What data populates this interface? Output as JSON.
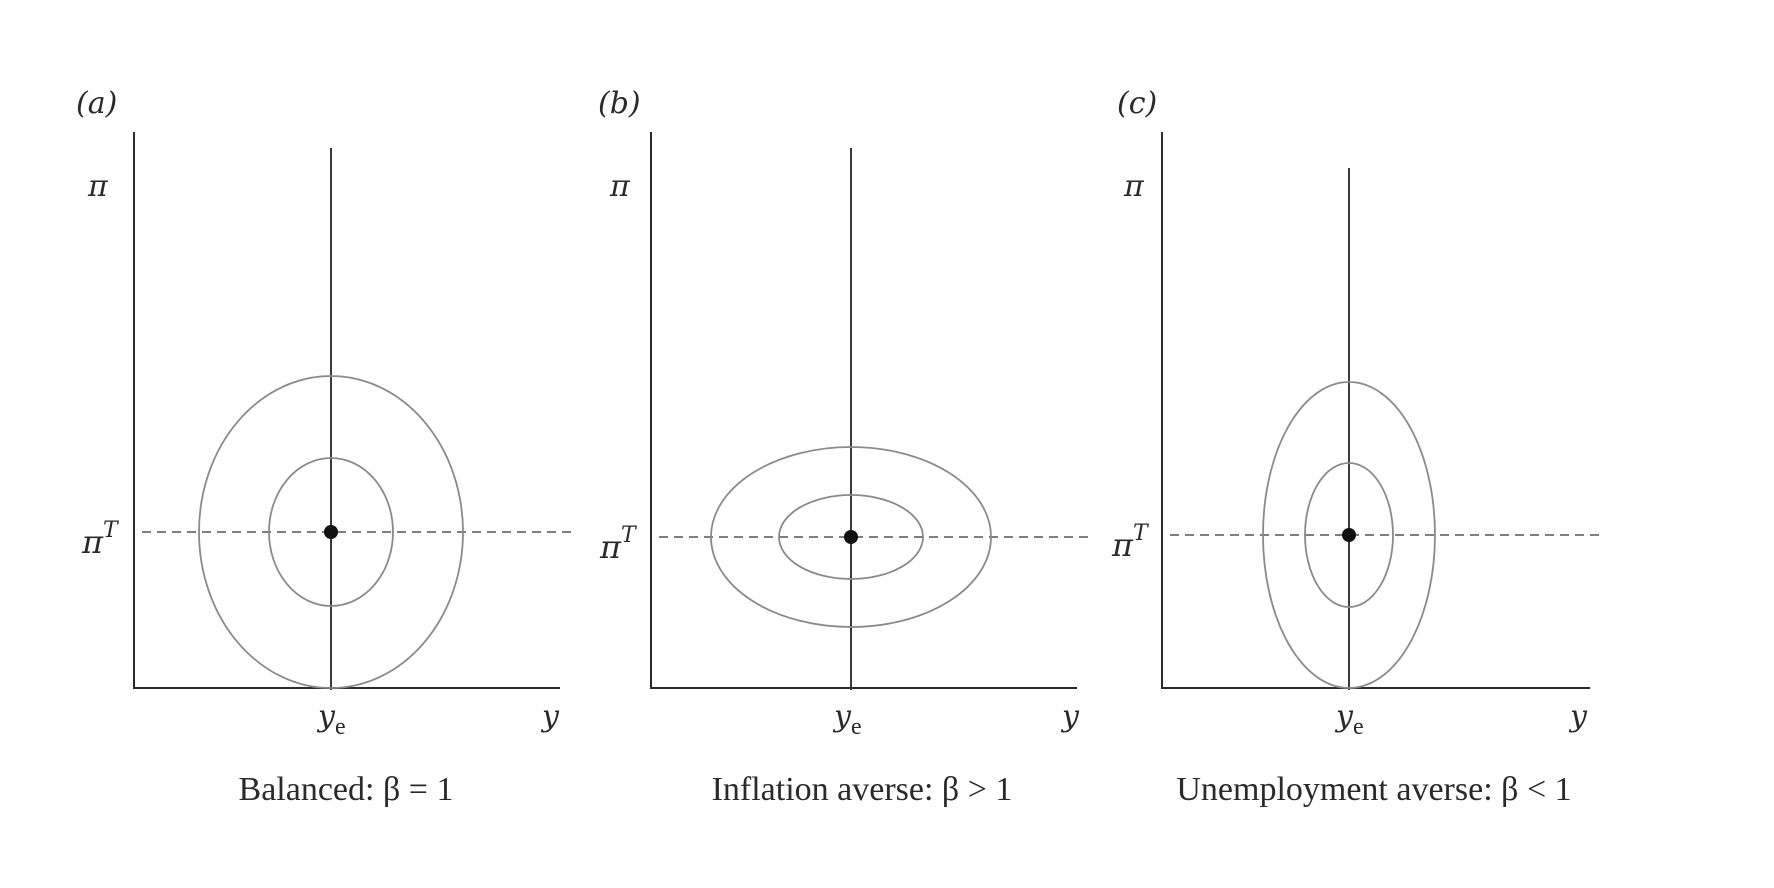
{
  "panels": [
    {
      "id": "a",
      "tag": "(a)",
      "y_axis_label": "π",
      "target_label": "π",
      "target_sup": "T",
      "natural_label": "y",
      "natural_sub": "e",
      "x_axis_label": "y",
      "caption": "Balanced: β = 1"
    },
    {
      "id": "b",
      "tag": "(b)",
      "y_axis_label": "π",
      "target_label": "π",
      "target_sup": "T",
      "natural_label": "y",
      "natural_sub": "e",
      "x_axis_label": "y",
      "caption": "Inflation averse: β > 1"
    },
    {
      "id": "c",
      "tag": "(c)",
      "y_axis_label": "π",
      "target_label": "π",
      "target_sup": "T",
      "natural_label": "y",
      "natural_sub": "e",
      "x_axis_label": "y",
      "caption": "Unemployment averse: β < 1"
    }
  ],
  "colors": {
    "axes": "#2b2b2b",
    "loss_ellipses": "#8a8a8a",
    "bliss_point": "#111111"
  }
}
